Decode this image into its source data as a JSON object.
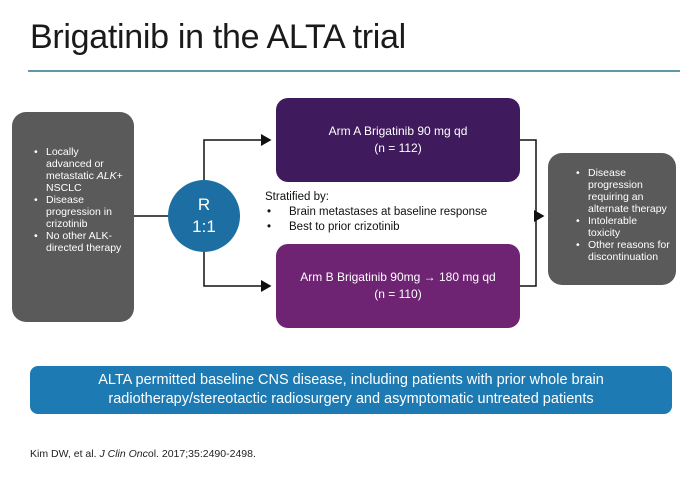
{
  "title": "Brigatinib in the ALTA trial",
  "left_criteria": [
    "Locally advanced or metastatic ALK+ NSCLC",
    "Disease progression in crizotinib",
    "No other ALK-directed therapy"
  ],
  "randomization": {
    "label": "R",
    "ratio": "1:1"
  },
  "stratification": {
    "heading": "Stratified by:",
    "items": [
      "Brain metastases at baseline response",
      "Best to prior crizotinib"
    ]
  },
  "arm_a": {
    "label": "Arm A Brigatinib 90 mg qd",
    "n": "(n = 112)"
  },
  "arm_b": {
    "label": "Arm B Brigatinib 90mg → 180 mg qd",
    "n": "(n = 110)"
  },
  "outcomes": [
    "Disease progression requiring an alternate therapy",
    "Intolerable toxicity",
    "Other reasons for discontinuation"
  ],
  "banner": "ALTA permitted baseline CNS disease, including patients with prior whole brain radiotherapy/stereotactic radiosurgery and asymptomatic untreated patients",
  "reference": {
    "prefix": "Kim DW, et al. ",
    "journal": "J Clin Onc",
    "suffix": "ol. 2017;35:2490-2498."
  },
  "colors": {
    "gray_box": "#5a5a5a",
    "arm_a": "#3f1a5c",
    "arm_b": "#6e2373",
    "randomization_circle": "#1d6fa3",
    "banner": "#1e7ab3",
    "title_rule": "#5b9aa6"
  }
}
